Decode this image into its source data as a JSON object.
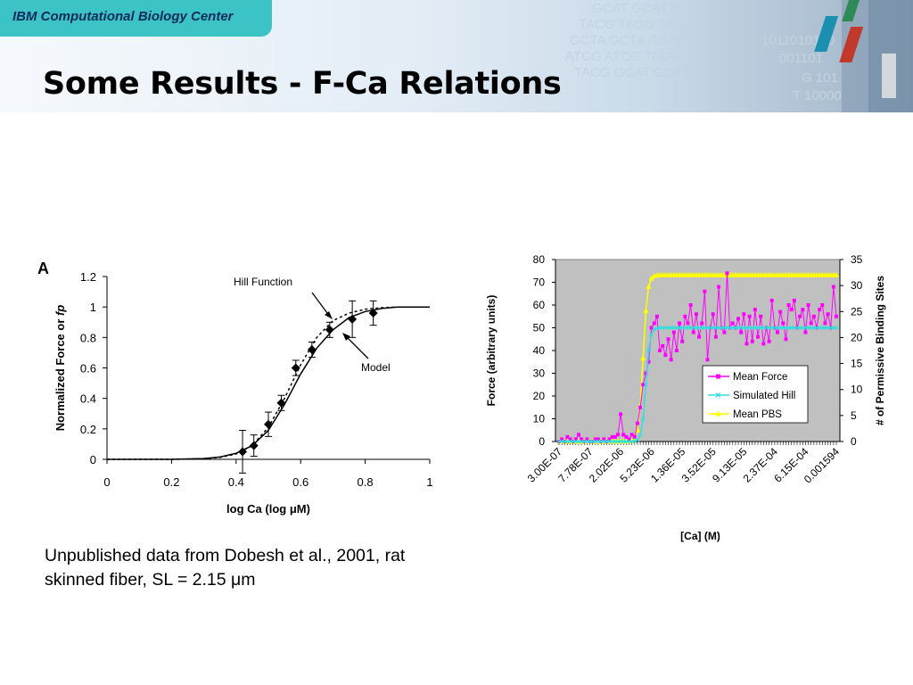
{
  "header": {
    "brand": "IBM Computational Biology Center",
    "title": "Some Results - F-Ca Relations",
    "art_text": [
      "GCAT GCAT ATCG",
      "TACG TACG TACG",
      "GCTA GCTA GCAT",
      "ATCG ATCG TACG",
      "TACG GCAT GCAT",
      "1011010100",
      "001101",
      "G 101",
      "T 10000"
    ]
  },
  "caption": {
    "line1": "Unpublished data from Dobesh et al., 2001, rat",
    "line2": "skinned fiber,  SL = 2.15 μm"
  },
  "chart_data": [
    {
      "type": "scatter",
      "panel_label": "A",
      "xlabel": "log Ca (log μM)",
      "ylabel_main": "Normalized Force or ",
      "ylabel_italic": "fp",
      "xlim": [
        0,
        1
      ],
      "ylim": [
        0,
        1.2
      ],
      "x_ticks": [
        "0",
        "0.2",
        "0.4",
        "0.6",
        "0.8",
        "1"
      ],
      "y_ticks": [
        "0",
        "0.2",
        "0.4",
        "0.6",
        "0.8",
        "1",
        "1.2"
      ],
      "annotations": [
        "Hill Function",
        "Model"
      ],
      "series": [
        {
          "name": "Data",
          "x": [
            0.42,
            0.455,
            0.5,
            0.54,
            0.585,
            0.635,
            0.69,
            0.76,
            0.825
          ],
          "y": [
            0.05,
            0.09,
            0.23,
            0.37,
            0.6,
            0.72,
            0.85,
            0.92,
            0.96
          ],
          "err": [
            0.14,
            0.07,
            0.08,
            0.05,
            0.05,
            0.05,
            0.05,
            0.12,
            0.08
          ]
        },
        {
          "name": "Model",
          "x": [
            0.0,
            0.2,
            0.3,
            0.35,
            0.4,
            0.45,
            0.5,
            0.55,
            0.6,
            0.65,
            0.7,
            0.75,
            0.8,
            0.85,
            0.9,
            1.0
          ],
          "y": [
            0.0,
            0.0,
            0.005,
            0.015,
            0.04,
            0.09,
            0.19,
            0.36,
            0.56,
            0.73,
            0.85,
            0.93,
            0.97,
            0.99,
            1.0,
            1.0
          ]
        },
        {
          "name": "Hill Function",
          "x": [
            0.0,
            0.2,
            0.3,
            0.35,
            0.4,
            0.45,
            0.5,
            0.55,
            0.6,
            0.65,
            0.7,
            0.75,
            0.8,
            0.85,
            0.9,
            1.0
          ],
          "y": [
            0.0,
            0.0,
            0.004,
            0.012,
            0.035,
            0.09,
            0.21,
            0.4,
            0.62,
            0.8,
            0.91,
            0.96,
            0.985,
            0.995,
            1.0,
            1.0
          ]
        }
      ]
    },
    {
      "type": "line",
      "xlabel": "[Ca] (M)",
      "ylabel_left": "Force (arbitrary units)",
      "ylabel_right": "# of Permissive Binding Sites",
      "ylim_left": [
        0,
        80
      ],
      "ylim_right": [
        0,
        35
      ],
      "y_ticks_left": [
        "0",
        "10",
        "20",
        "30",
        "40",
        "50",
        "60",
        "70",
        "80"
      ],
      "y_ticks_right": [
        "0",
        "5",
        "10",
        "15",
        "20",
        "25",
        "30",
        "35"
      ],
      "x_tick_labels": [
        "3.00E-07",
        "7.78E-07",
        "2.02E-06",
        "5.23E-06",
        "1.36E-05",
        "3.52E-05",
        "9.13E-05",
        "2.37E-04",
        "6.15E-04",
        "0.001594"
      ],
      "grid": false,
      "plot_background": "#c0c0c0",
      "legend_position": "lower-right",
      "x_count": 100,
      "series": [
        {
          "name": "Mean Force",
          "axis": "left",
          "color": "#ff00ff",
          "marker": "square",
          "values": [
            0,
            1,
            0,
            2,
            1,
            0,
            1,
            3,
            1,
            0,
            1,
            0,
            0,
            1,
            1,
            0,
            1,
            0,
            1,
            2,
            2,
            3,
            12,
            3,
            2,
            1,
            3,
            2,
            8,
            15,
            25,
            30,
            35,
            50,
            52,
            55,
            40,
            42,
            38,
            45,
            36,
            48,
            40,
            52,
            44,
            55,
            52,
            60,
            48,
            56,
            46,
            52,
            66,
            36,
            50,
            56,
            46,
            68,
            50,
            48,
            74,
            50,
            52,
            50,
            54,
            48,
            56,
            43,
            55,
            44,
            58,
            46,
            55,
            43,
            50,
            44,
            62,
            50,
            48,
            57,
            52,
            45,
            60,
            58,
            62,
            50,
            55,
            58,
            48,
            60,
            52,
            55,
            50,
            58,
            60,
            52,
            56,
            50,
            68,
            55
          ],
          "right_axis_values": []
        },
        {
          "name": "Simulated Hill",
          "axis": "left",
          "color": "#33dddd",
          "marker": "x",
          "midpoint_index": 31,
          "plateau": 50
        },
        {
          "name": "Mean PBS",
          "axis": "right",
          "color": "#ffff00",
          "marker": "triangle",
          "midpoint_index": 30,
          "plateau": 32
        }
      ]
    }
  ]
}
